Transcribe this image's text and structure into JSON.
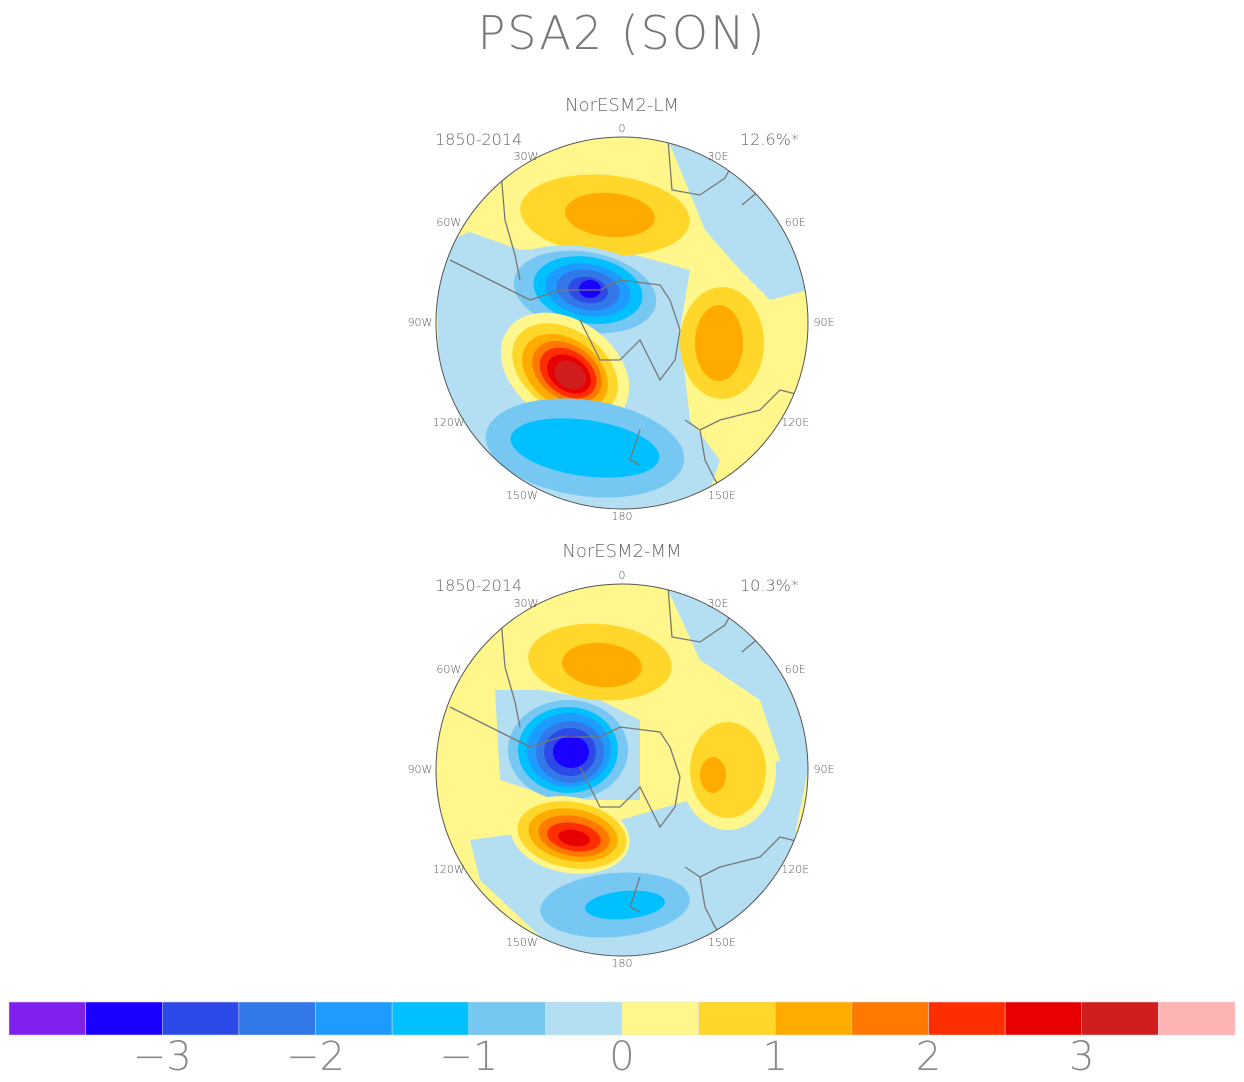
{
  "title": "PSA2 (SON)",
  "panels": [
    {
      "model": "NorESM2-LM",
      "period": "1850-2014",
      "variance": "12.6%*"
    },
    {
      "model": "NorESM2-MM",
      "period": "1850-2014",
      "variance": "10.3%*"
    }
  ],
  "lon_labels": [
    "0",
    "30E",
    "60E",
    "90E",
    "120E",
    "150E",
    "180",
    "150W",
    "120W",
    "90W",
    "60W",
    "30W"
  ],
  "colorbar": {
    "colors": [
      "#8020f0",
      "#1a00ff",
      "#2d4ae8",
      "#3278e8",
      "#1e9bff",
      "#00c0ff",
      "#76c8f2",
      "#b4dff3",
      "#fff78c",
      "#ffd72a",
      "#ffab00",
      "#ff7800",
      "#ff2e00",
      "#e80000",
      "#d01e1e",
      "#ffb4b4"
    ],
    "tick_labels": [
      "−3",
      "−2",
      "−1",
      "0",
      "1",
      "2",
      "3"
    ],
    "levels": [
      -3.5,
      -3,
      -2.5,
      -2,
      -1.5,
      -1,
      -0.5,
      0,
      0.5,
      1,
      1.5,
      2,
      2.5,
      3,
      3.5
    ]
  }
}
